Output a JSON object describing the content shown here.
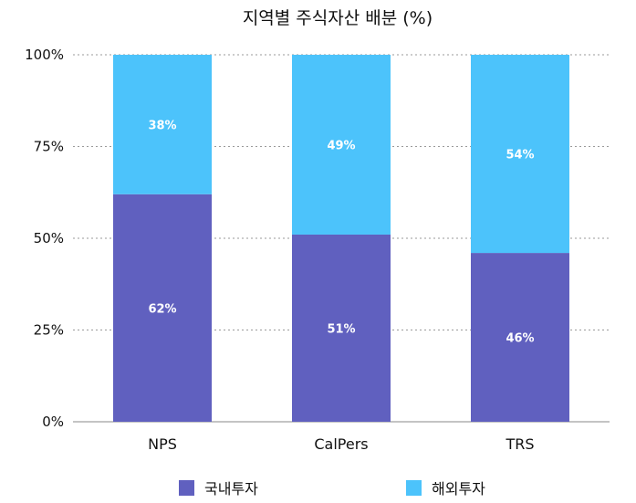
{
  "chart_data": {
    "type": "bar",
    "stacked": true,
    "title": "지역별 주식자산 배분 (%)",
    "categories": [
      "NPS",
      "CalPers",
      "TRS"
    ],
    "series": [
      {
        "name": "국내투자",
        "values": [
          62,
          51,
          46
        ],
        "labels": [
          "62%",
          "51%",
          "46%"
        ],
        "color": "#6060bf"
      },
      {
        "name": "해외투자",
        "values": [
          38,
          49,
          54
        ],
        "labels": [
          "38%",
          "49%",
          "54%"
        ],
        "color": "#4cc3fb"
      }
    ],
    "ylim": [
      0,
      100
    ],
    "yticks": [
      {
        "value": 0,
        "label": "0%"
      },
      {
        "value": 25,
        "label": "25%"
      },
      {
        "value": 50,
        "label": "50%"
      },
      {
        "value": 75,
        "label": "75%"
      },
      {
        "value": 100,
        "label": "100%"
      }
    ],
    "grid": true,
    "legend": "bottom"
  }
}
